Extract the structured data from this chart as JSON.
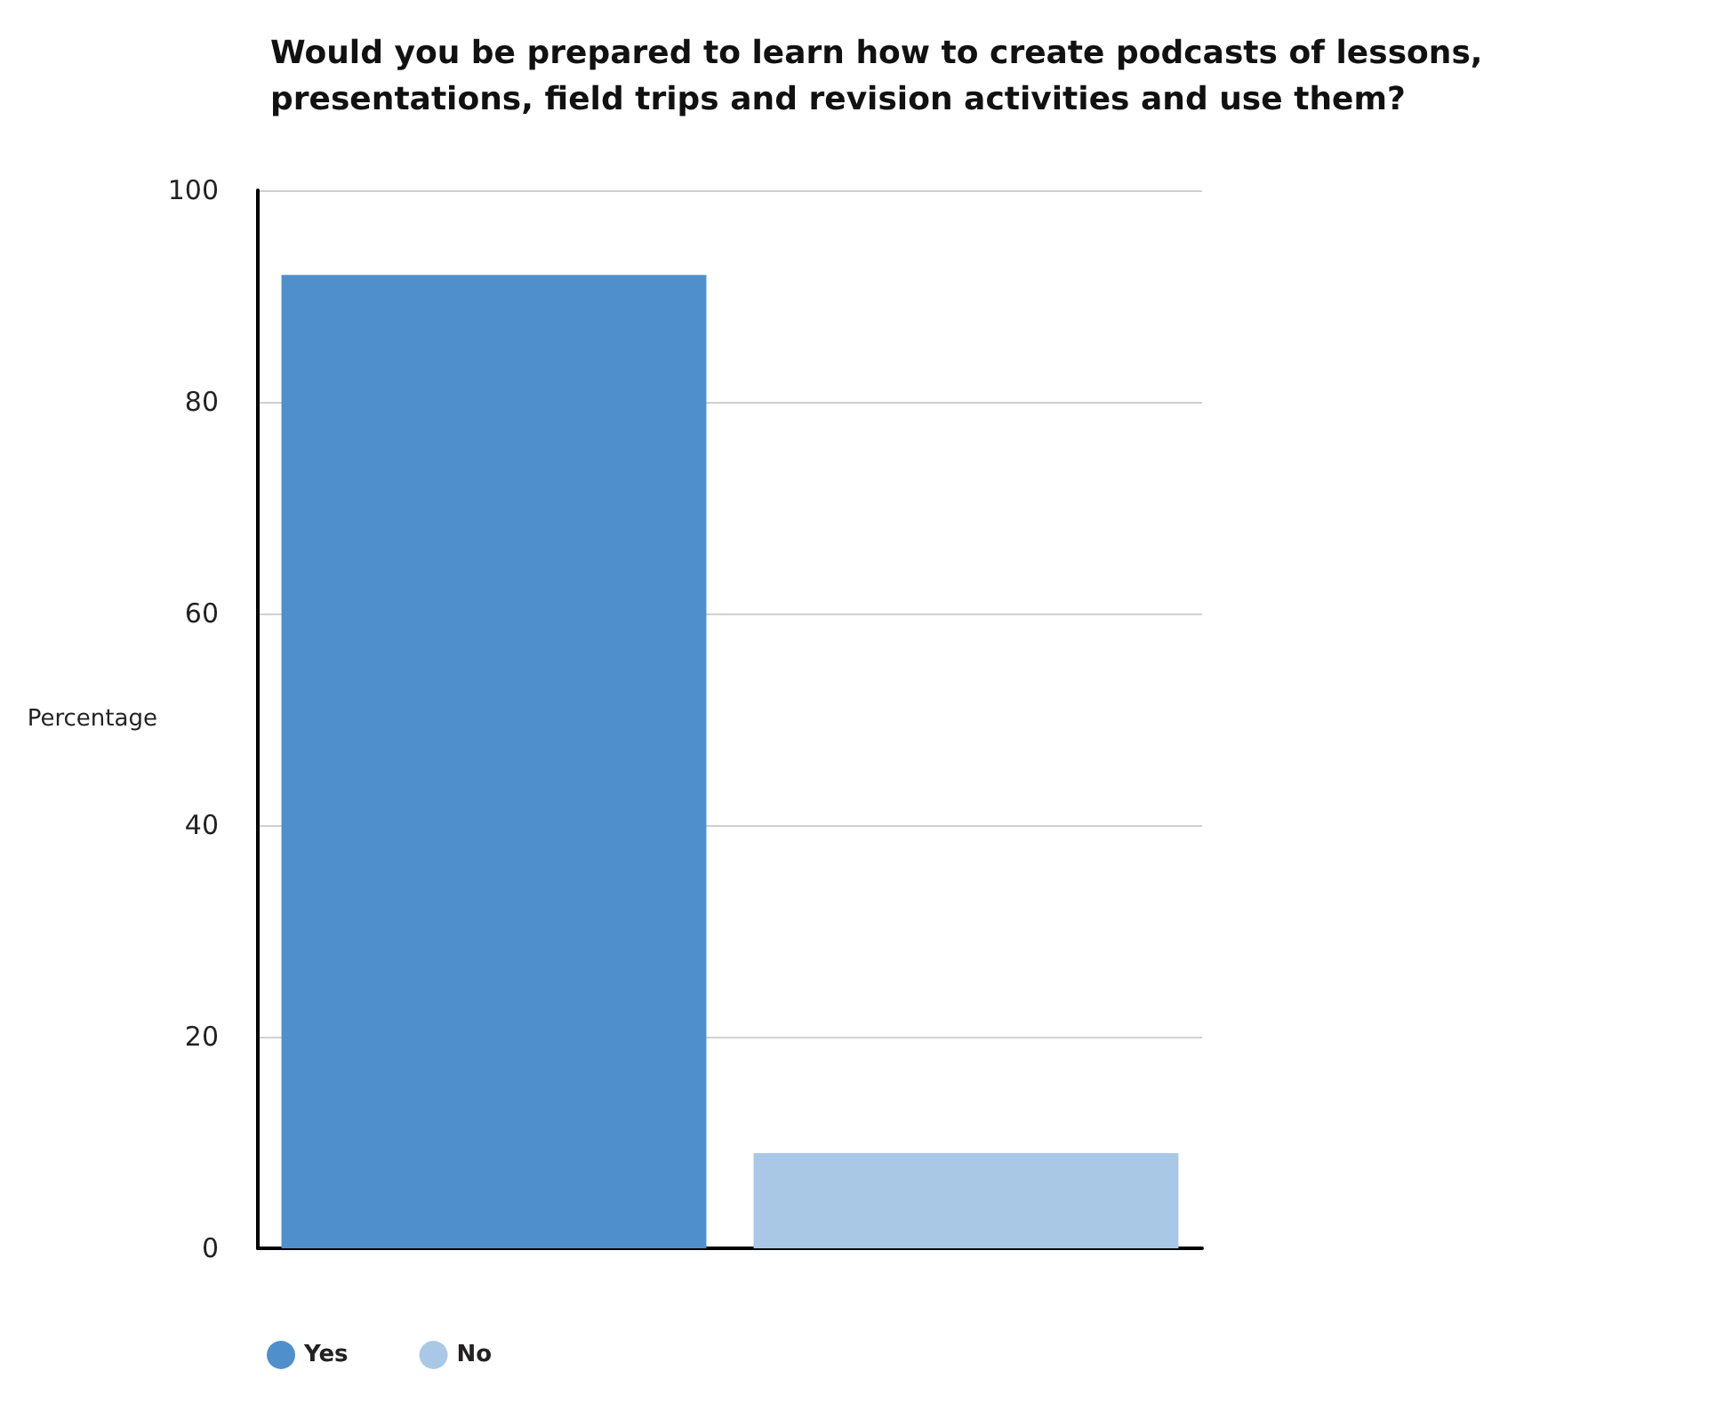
{
  "chart_data": {
    "type": "bar",
    "title": "Would you be prepared to learn how to create podcasts of lessons,\npresentations, field trips and revision activities and use them?",
    "ylabel": "Percentage",
    "categories": [
      null,
      null
    ],
    "series": [
      {
        "name": "Yes",
        "color": "#4f8fcc",
        "values": [
          92,
          null
        ]
      },
      {
        "name": "No",
        "color": "#a9c8e6",
        "values": [
          null,
          9
        ]
      }
    ],
    "ylim": [
      0,
      100
    ],
    "yticks": [
      0,
      20,
      40,
      60,
      80,
      100
    ],
    "grid": "y",
    "legend": "bottom left"
  }
}
